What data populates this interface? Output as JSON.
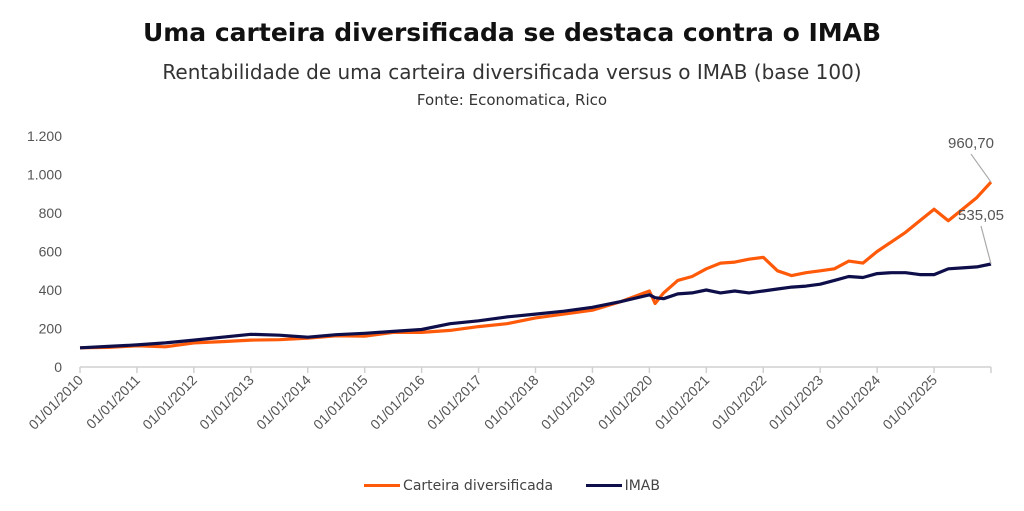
{
  "title": "Uma carteira diversificada se destaca contra o IMAB",
  "subtitle": "Rentabilidade de uma carteira diversificada versus o IMAB (base 100)",
  "source": "Fonte: Economatica, Rico",
  "chart_data": {
    "type": "line",
    "title": "Uma carteira diversificada se destaca contra o IMAB",
    "subtitle": "Rentabilidade de uma carteira diversificada versus o IMAB (base 100)",
    "xlabel": "",
    "ylabel": "",
    "ylim": [
      0,
      1200
    ],
    "xlim": [
      2010.0,
      2026.0
    ],
    "grid": false,
    "legend_position": "bottom",
    "y_ticks": [
      "0",
      "200",
      "400",
      "600",
      "800",
      "1.000",
      "1.200"
    ],
    "y_tick_values": [
      0,
      200,
      400,
      600,
      800,
      1000,
      1200
    ],
    "x_ticks": [
      "01/01/2010",
      "01/01/2011",
      "01/01/2012",
      "01/01/2013",
      "01/01/2014",
      "01/01/2015",
      "01/01/2016",
      "01/01/2017",
      "01/01/2018",
      "01/01/2019",
      "01/01/2020",
      "01/01/2021",
      "01/01/2022",
      "01/01/2023",
      "01/01/2024",
      "01/01/2025"
    ],
    "x": [
      2010.0,
      2010.5,
      2011.0,
      2011.5,
      2012.0,
      2012.5,
      2013.0,
      2013.5,
      2014.0,
      2014.5,
      2015.0,
      2015.5,
      2016.0,
      2016.5,
      2017.0,
      2017.5,
      2018.0,
      2018.5,
      2019.0,
      2019.5,
      2020.0,
      2020.1,
      2020.25,
      2020.5,
      2020.75,
      2021.0,
      2021.25,
      2021.5,
      2021.75,
      2022.0,
      2022.25,
      2022.5,
      2022.75,
      2023.0,
      2023.25,
      2023.5,
      2023.75,
      2024.0,
      2024.25,
      2024.5,
      2024.75,
      2025.0,
      2025.25,
      2025.5,
      2025.75,
      2026.0
    ],
    "series": [
      {
        "name": "Carteira diversificada",
        "color": "#FF5A0A",
        "values": [
          100,
          102,
          110,
          105,
          125,
          132,
          140,
          142,
          150,
          162,
          160,
          180,
          180,
          190,
          210,
          225,
          255,
          275,
          295,
          340,
          395,
          330,
          385,
          450,
          470,
          510,
          540,
          545,
          560,
          570,
          500,
          475,
          490,
          500,
          510,
          550,
          540,
          600,
          650,
          700,
          760,
          820,
          760,
          820,
          880,
          960.7
        ]
      },
      {
        "name": "IMAB",
        "color": "#0E0F4A",
        "values": [
          100,
          107,
          115,
          125,
          140,
          155,
          170,
          165,
          155,
          168,
          175,
          185,
          195,
          225,
          240,
          260,
          275,
          290,
          310,
          340,
          375,
          360,
          355,
          380,
          385,
          400,
          385,
          395,
          385,
          395,
          405,
          415,
          420,
          430,
          450,
          470,
          465,
          485,
          490,
          490,
          480,
          480,
          510,
          515,
          520,
          535.05
        ]
      }
    ],
    "annotations": [
      {
        "series": "Carteira diversificada",
        "text": "960,70"
      },
      {
        "series": "IMAB",
        "text": "535,05"
      }
    ]
  },
  "legend": {
    "items": [
      {
        "label": "Carteira diversificada",
        "color": "#FF5A0A"
      },
      {
        "label": "IMAB",
        "color": "#0E0F4A"
      }
    ]
  }
}
